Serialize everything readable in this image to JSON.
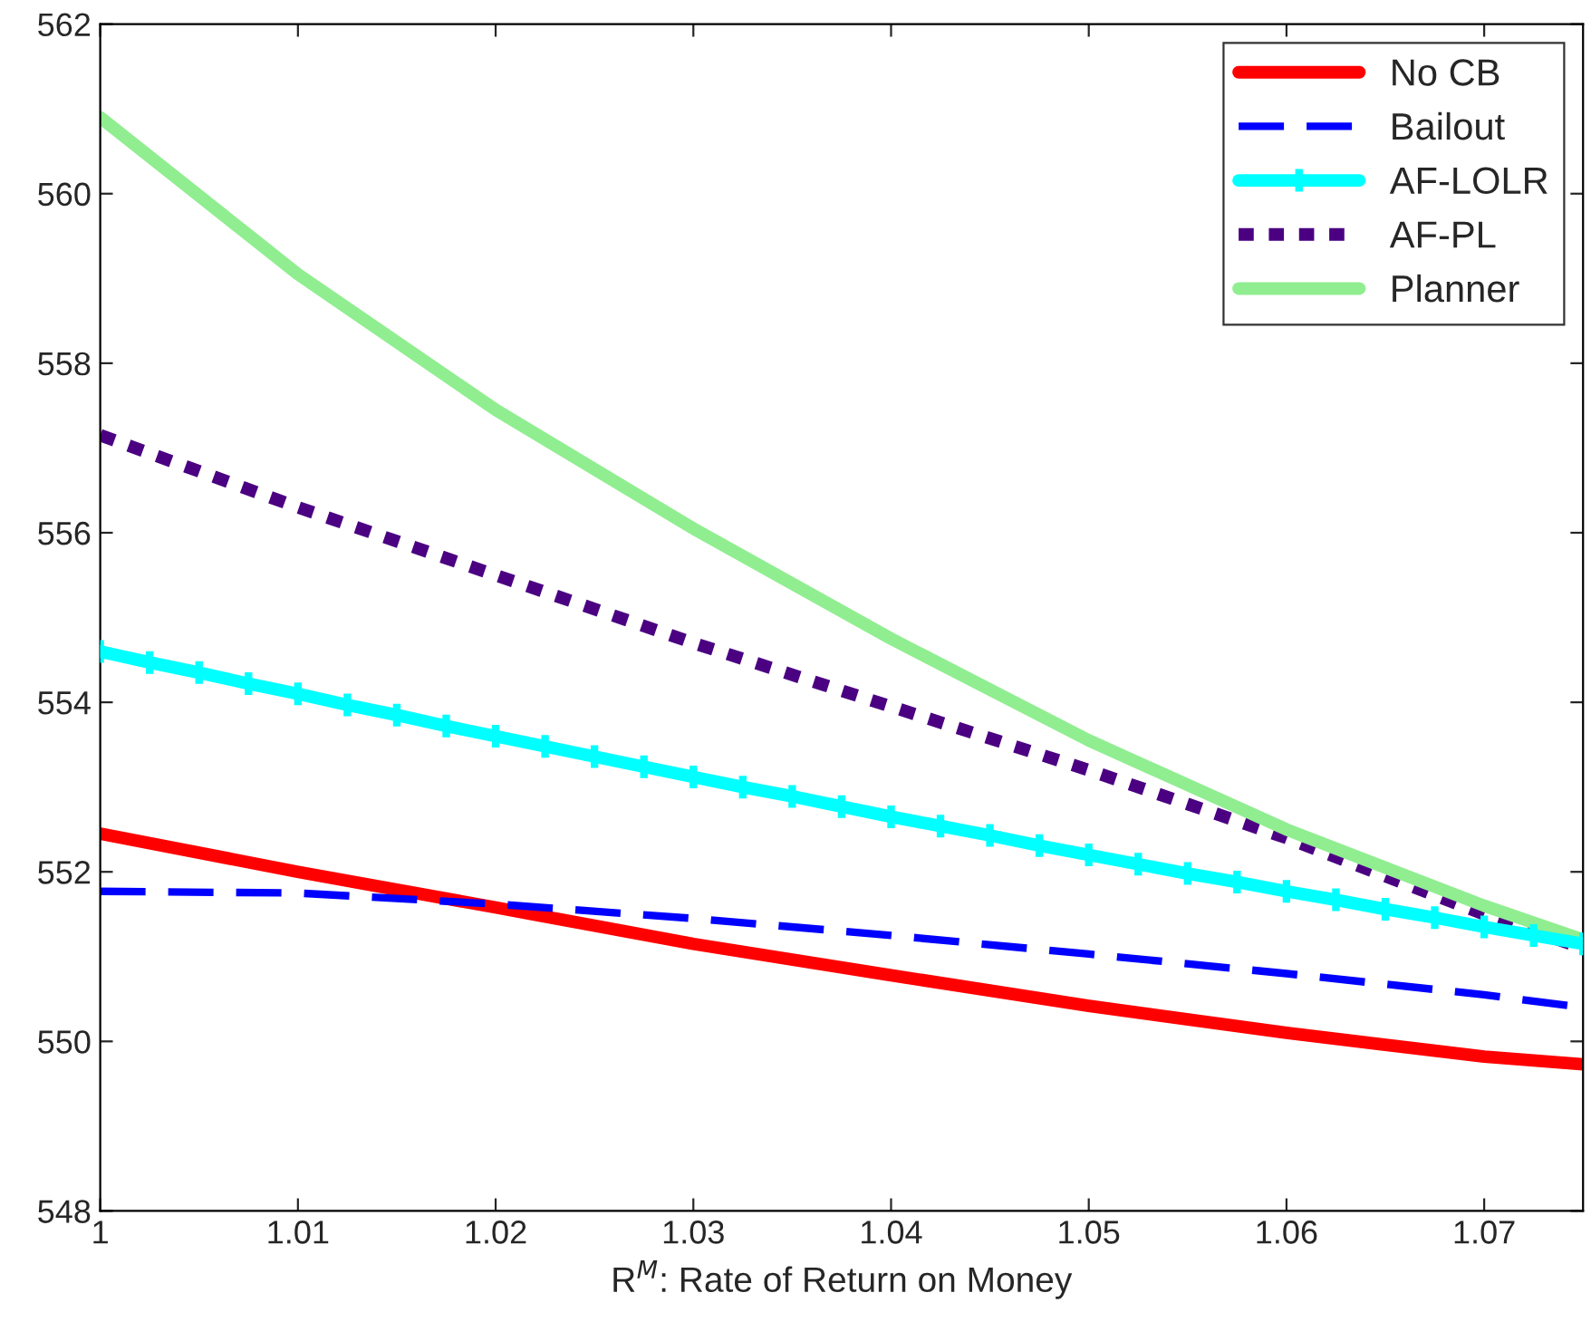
{
  "chart_data": {
    "type": "line",
    "xlabel": "R$^{M}$: Rate of Return on Money",
    "xlim": [
      1,
      1.075
    ],
    "xticks": [
      1,
      1.01,
      1.02,
      1.03,
      1.04,
      1.05,
      1.06,
      1.07
    ],
    "ylim": [
      548,
      562
    ],
    "yticks": [
      548,
      550,
      552,
      554,
      556,
      558,
      560,
      562
    ],
    "grid": false,
    "legend": "top right",
    "series": [
      {
        "name": "No CB",
        "color": "#ff0000",
        "line_style": "solid",
        "marker": "none",
        "x": [
          1,
          1.01,
          1.02,
          1.03,
          1.04,
          1.05,
          1.06,
          1.07,
          1.075
        ],
        "values": [
          552.45,
          552.0,
          551.58,
          551.15,
          550.78,
          550.42,
          550.1,
          549.82,
          549.73
        ]
      },
      {
        "name": "Bailout",
        "color": "#0000ff",
        "line_style": "dashed",
        "marker": "none",
        "x": [
          1,
          1.01,
          1.02,
          1.03,
          1.04,
          1.05,
          1.06,
          1.07,
          1.075
        ],
        "values": [
          551.77,
          551.75,
          551.62,
          551.45,
          551.25,
          551.03,
          550.8,
          550.55,
          550.4
        ]
      },
      {
        "name": "AF-LOLR",
        "color": "#00ffff",
        "line_style": "solid",
        "marker": "cross",
        "x": [
          1.0,
          1.0025,
          1.005,
          1.0075,
          1.01,
          1.0125,
          1.015,
          1.0175,
          1.02,
          1.0225,
          1.025,
          1.0275,
          1.03,
          1.0325,
          1.035,
          1.0375,
          1.04,
          1.0425,
          1.045,
          1.0475,
          1.05,
          1.0525,
          1.055,
          1.0575,
          1.06,
          1.0625,
          1.065,
          1.0675,
          1.07,
          1.0725,
          1.075
        ],
        "values": [
          554.6,
          554.47,
          554.35,
          554.22,
          554.1,
          553.97,
          553.85,
          553.72,
          553.6,
          553.48,
          553.36,
          553.24,
          553.12,
          553.0,
          552.89,
          552.77,
          552.65,
          552.54,
          552.43,
          552.31,
          552.2,
          552.09,
          551.98,
          551.88,
          551.77,
          551.67,
          551.56,
          551.46,
          551.35,
          551.25,
          551.15
        ]
      },
      {
        "name": "AF-PL",
        "color": "#4b0082",
        "line_style": "dotted",
        "marker": "none",
        "x": [
          1,
          1.01,
          1.02,
          1.03,
          1.04,
          1.05,
          1.06,
          1.07,
          1.075
        ],
        "values": [
          557.15,
          556.3,
          555.5,
          554.7,
          553.95,
          553.2,
          552.4,
          551.5,
          551.1
        ]
      },
      {
        "name": "Planner",
        "color": "#90ee90",
        "line_style": "solid",
        "marker": "none",
        "x": [
          1,
          1.01,
          1.02,
          1.03,
          1.04,
          1.05,
          1.06,
          1.07,
          1.075
        ],
        "values": [
          560.9,
          559.05,
          557.45,
          556.05,
          554.75,
          553.55,
          552.5,
          551.6,
          551.2
        ]
      }
    ]
  }
}
